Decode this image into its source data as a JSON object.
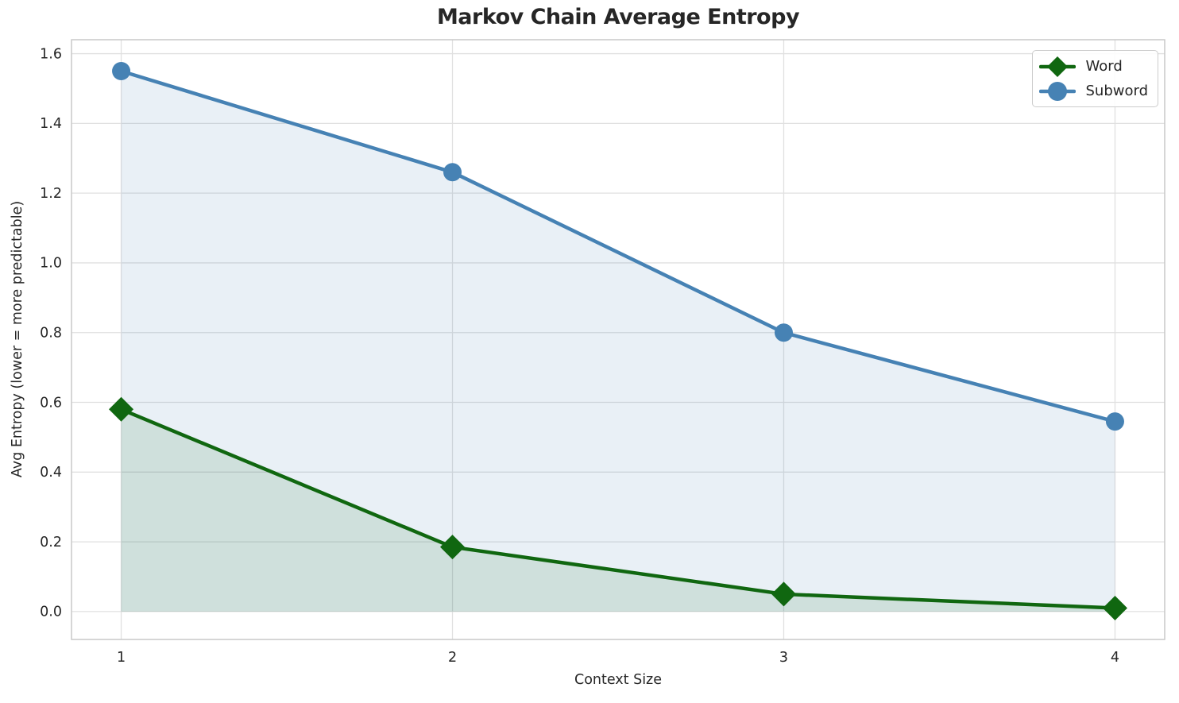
{
  "chart_data": {
    "type": "line",
    "title": "Markov Chain Average Entropy",
    "xlabel": "Context Size",
    "ylabel": "Avg Entropy (lower = more predictable)",
    "x": [
      1,
      2,
      3,
      4
    ],
    "series": [
      {
        "name": "Word",
        "values": [
          0.58,
          0.185,
          0.05,
          0.01
        ],
        "color": "#106710",
        "marker": "diamond",
        "fill_to_zero": true,
        "fill_opacity": 0.12
      },
      {
        "name": "Subword",
        "values": [
          1.55,
          1.26,
          0.8,
          0.545
        ],
        "color": "#4682b4",
        "marker": "circle",
        "fill_to_zero": true,
        "fill_opacity": 0.12
      }
    ],
    "xlim": [
      0.85,
      4.15
    ],
    "ylim": [
      -0.08,
      1.64
    ],
    "xticks": {
      "values": [
        1,
        2,
        3,
        4
      ],
      "labels": [
        "1",
        "2",
        "3",
        "4"
      ]
    },
    "yticks": {
      "values": [
        0.0,
        0.2,
        0.4,
        0.6,
        0.8,
        1.0,
        1.2,
        1.4,
        1.6
      ],
      "labels": [
        "0.0",
        "0.2",
        "0.4",
        "0.6",
        "0.8",
        "1.0",
        "1.2",
        "1.4",
        "1.6"
      ]
    },
    "grid": true,
    "grid_color": "#e0e0e0",
    "spine_color": "#c9c9c9",
    "text_color": "#262626",
    "background": "#ffffff",
    "legend_position": "top-right"
  }
}
